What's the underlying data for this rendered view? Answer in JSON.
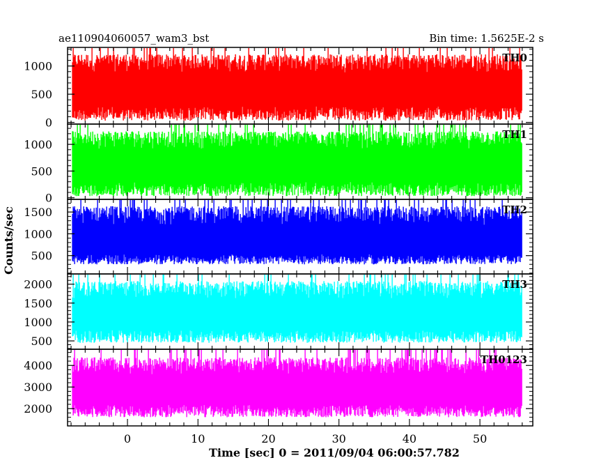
{
  "chart_data": {
    "type": "line",
    "title": "ae110904060057_wam3_bst",
    "subtitle": "Bin time: 1.5625E-2 s",
    "xlabel": "Time [sec] 0 = 2011/09/04 06:00:57.782",
    "ylabel": "Counts/sec",
    "xlim": [
      -8.5,
      57.5
    ],
    "x_ticks": [
      0,
      10,
      20,
      30,
      40,
      50
    ],
    "data_x_range": [
      -7.8,
      56.0
    ],
    "panels": [
      {
        "name": "TH0",
        "color": "#ff0000",
        "ylim": [
          -30,
          1330
        ],
        "y_ticks": [
          0,
          500,
          1000
        ],
        "summary": {
          "low": 30,
          "high": 1220,
          "mean": 600
        }
      },
      {
        "name": "TH1",
        "color": "#00ff00",
        "ylim": [
          -30,
          1380
        ],
        "y_ticks": [
          0,
          500,
          1000
        ],
        "summary": {
          "low": 30,
          "high": 1260,
          "mean": 620
        }
      },
      {
        "name": "TH2",
        "color": "#0000ff",
        "ylim": [
          80,
          1790
        ],
        "y_ticks": [
          500,
          1000,
          1500
        ],
        "summary": {
          "low": 300,
          "high": 1650,
          "mean": 820
        }
      },
      {
        "name": "TH3",
        "color": "#00ffff",
        "ylim": [
          280,
          2270
        ],
        "y_ticks": [
          500,
          1000,
          1500,
          2000
        ],
        "summary": {
          "low": 450,
          "high": 2100,
          "mean": 1200
        }
      },
      {
        "name": "TH0123",
        "color": "#ff00ff",
        "ylim": [
          1200,
          4750
        ],
        "y_ticks": [
          2000,
          3000,
          4000
        ],
        "summary": {
          "low": 1600,
          "high": 4400,
          "mean": 2900
        }
      }
    ]
  }
}
